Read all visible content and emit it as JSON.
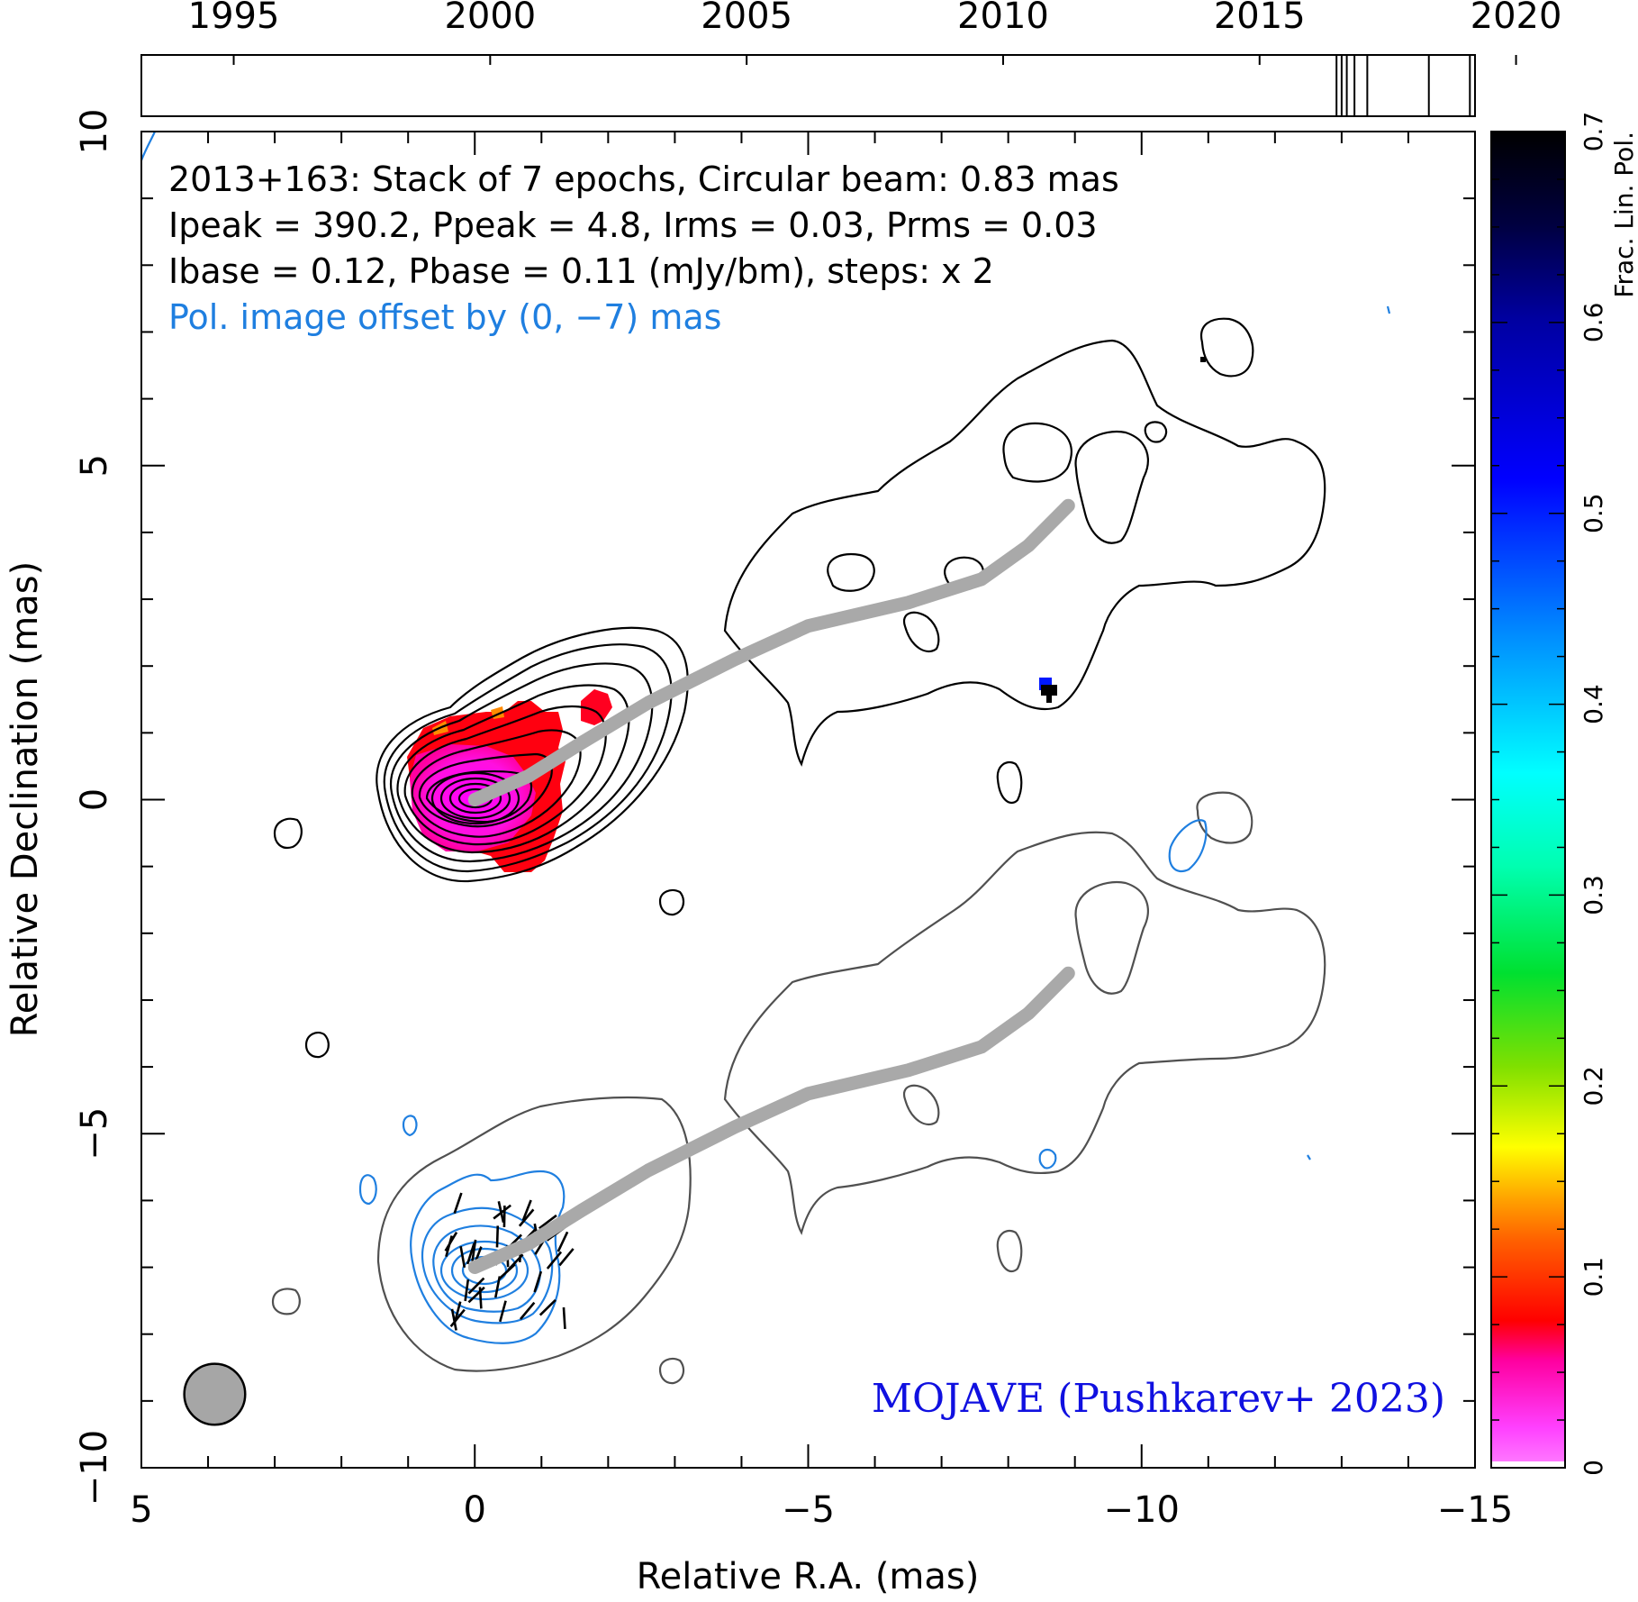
{
  "chart_data": {
    "type": "contour-map",
    "source": "2013+163",
    "info_lines": [
      "2013+163: Stack of 7 epochs, Circular beam: 0.83 mas",
      "Ipeak = 390.2, Ppeak = 4.8, Irms = 0.03, Prms = 0.03",
      "Ibase = 0.12, Pbase = 0.11 (mJy/bm), steps: x 2"
    ],
    "pol_offset_note": "Pol. image offset by (0, −7) mas",
    "credit": "MOJAVE (Pushkarev+ 2023)",
    "xlabel": "Relative R.A. (mas)",
    "ylabel": "Relative Declination (mas)",
    "xlim": [
      5,
      -15
    ],
    "ylim": [
      -10,
      10
    ],
    "x_ticks": [
      5,
      0,
      -5,
      -10,
      -15
    ],
    "x_tick_labels": [
      "5",
      "0",
      "−5",
      "−10",
      "−15"
    ],
    "y_ticks": [
      -10,
      -5,
      0,
      5,
      10
    ],
    "y_tick_labels": [
      "−10",
      "−5",
      "0",
      "5",
      "10"
    ],
    "timeline": {
      "ticks": [
        1995,
        2000,
        2005,
        2010,
        2015,
        2020
      ],
      "tick_labels": [
        "1995",
        "2000",
        "2005",
        "2010",
        "2015",
        "2020"
      ],
      "range": [
        1993.2,
        2019.2
      ],
      "epochs": [
        2016.5,
        2016.6,
        2016.7,
        2016.85,
        2017.1,
        2018.3,
        2019.1
      ]
    },
    "colorbar": {
      "label": "Frac. Lin. Pol.",
      "range": [
        0,
        0.7
      ],
      "ticks": [
        0,
        0.1,
        0.2,
        0.3,
        0.4,
        0.5,
        0.6,
        0.7
      ],
      "tick_labels": [
        "0",
        "0.1",
        "0.2",
        "0.3",
        "0.4",
        "0.5",
        "0.6",
        "0.7"
      ],
      "colors": [
        "#ff60ff",
        "#ff00c0",
        "#ff0020",
        "#ff8000",
        "#ffff00",
        "#40e000",
        "#00ff80",
        "#00ffff",
        "#0080ff",
        "#0000ff",
        "#000080",
        "#000000"
      ]
    },
    "beam_diameter_mas": 0.83,
    "ridge_line": [
      [
        0,
        0
      ],
      [
        -0.8,
        0.35
      ],
      [
        -1.6,
        0.85
      ],
      [
        -2.6,
        1.45
      ],
      [
        -3.3,
        1.8
      ],
      [
        -3.9,
        2.1
      ],
      [
        -5,
        2.6
      ],
      [
        -6.5,
        2.95
      ],
      [
        -7.6,
        3.3
      ],
      [
        -8.3,
        3.8
      ],
      [
        -8.9,
        4.4
      ]
    ],
    "total_intensity_outer_contour": [
      [
        3.5,
        0.2
      ],
      [
        2.6,
        1.3
      ],
      [
        1.6,
        2.0
      ],
      [
        0.5,
        2.1
      ],
      [
        -0.3,
        2.1
      ],
      [
        -1.2,
        2.4
      ],
      [
        -2.1,
        2.55
      ],
      [
        -2.8,
        2.5
      ],
      [
        -3.3,
        1.9
      ],
      [
        -3.4,
        1.2
      ],
      [
        -3.1,
        0.6
      ],
      [
        -2.5,
        0.1
      ],
      [
        -1.7,
        -0.4
      ],
      [
        -1,
        -0.8
      ],
      [
        0,
        -1.0
      ],
      [
        1,
        -1.1
      ],
      [
        2,
        -0.9
      ],
      [
        2.8,
        -0.3
      ]
    ],
    "extended_outer_contour": [
      [
        -3.7,
        2.6
      ],
      [
        -4.3,
        3.8
      ],
      [
        -5,
        4.25
      ],
      [
        -5.8,
        4.3
      ],
      [
        -6.4,
        4.6
      ],
      [
        -7,
        4.9
      ],
      [
        -7.7,
        5.5
      ],
      [
        -8.4,
        6.3
      ],
      [
        -9.2,
        6.5
      ],
      [
        -10,
        5.7
      ],
      [
        -11,
        4.9
      ],
      [
        -11.8,
        5.3
      ],
      [
        -12.2,
        4.5
      ],
      [
        -11.7,
        3.3
      ],
      [
        -11,
        3.1
      ],
      [
        -9.6,
        2.9
      ],
      [
        -9,
        2.1
      ],
      [
        -8.8,
        1.7
      ],
      [
        -8.3,
        1.35
      ],
      [
        -7.2,
        1.6
      ],
      [
        -6.3,
        1.5
      ],
      [
        -5.4,
        1.0
      ],
      [
        -4.9,
        0.6
      ],
      [
        -4.6,
        1.3
      ],
      [
        -4.2,
        1.8
      ]
    ],
    "stacked_pol_vectors_count": 40,
    "frac_pol_peak": 0.6
  }
}
